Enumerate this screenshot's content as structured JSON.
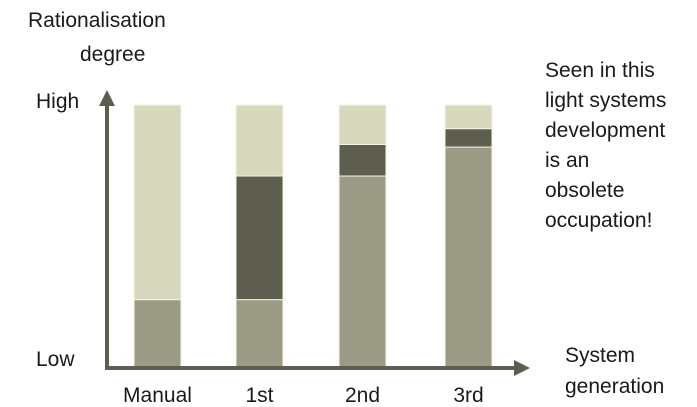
{
  "chart_data": {
    "type": "bar",
    "stacked": true,
    "ylabel": [
      "Rationalisation",
      "degree"
    ],
    "xlabel": [
      "System",
      "generation"
    ],
    "yticks": [
      "Low",
      "High"
    ],
    "ylim": [
      0,
      100
    ],
    "categories": [
      "Manual",
      "1st",
      "2nd",
      "3rd"
    ],
    "series": [
      {
        "color": "#9b9b85",
        "values": [
          26,
          26,
          73,
          84
        ]
      },
      {
        "color": "#5d5e50",
        "values": [
          0,
          47,
          12,
          7
        ]
      },
      {
        "color": "#d7d8bd",
        "values": [
          74,
          27,
          15,
          9
        ]
      }
    ],
    "annotation": [
      "Seen in this",
      "light systems",
      "development",
      "is an",
      "obsolete",
      "occupation!"
    ],
    "colors": {
      "axis": "#5d5e50",
      "outline": "#f4f4e4"
    }
  }
}
